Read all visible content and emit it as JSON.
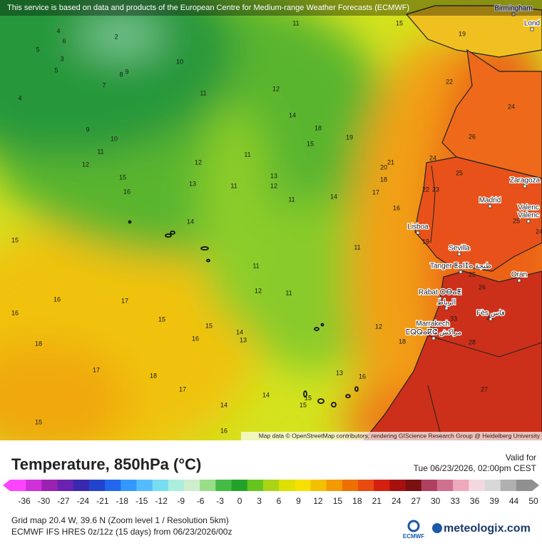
{
  "header": {
    "notice": "This service is based on data and products of the European Centre for Medium-range Weather Forecasts (ECMWF)"
  },
  "map": {
    "cities": [
      "Birmingham",
      "Lond",
      "Zaragoza",
      "Madrid",
      "Valenc",
      "Valenc",
      "Lisboa",
      "Sevilla",
      "Tanger ⵟⴰⵏⵊⴰ طنجة",
      "Oran",
      "Rabat ⵔⴱⴰⵟ",
      "الرباط",
      "Fès فاس",
      "Marrakech",
      "ⵎⵕⵕⴰⴽⵛ مراكش"
    ],
    "contour_labels": [
      4,
      6,
      2,
      5,
      3,
      5,
      8,
      9,
      4,
      7,
      10,
      11,
      15,
      19,
      11,
      12,
      9,
      10,
      11,
      12,
      14,
      18,
      19,
      15,
      11,
      12,
      13,
      12,
      11,
      13,
      15,
      16,
      21,
      20,
      18,
      17,
      14,
      11,
      16,
      14,
      15,
      11,
      11,
      12,
      11,
      17,
      16,
      16,
      15,
      15,
      14,
      13,
      16,
      12,
      18,
      18,
      17,
      18,
      13,
      16,
      17,
      14,
      15,
      14,
      15,
      15,
      16,
      22,
      24,
      26,
      24,
      25,
      22,
      23,
      25,
      24,
      19,
      25,
      26,
      28,
      33,
      29,
      28,
      27
    ],
    "credit": "Map data © OpenStreetMap contributors, rendering GIScience Research Group @ Heidelberg University"
  },
  "legend": {
    "title": "Temperature, 850hPa (°C)",
    "valid_label": "Valid for",
    "valid_time": "Tue 06/23/2026, 02:00pm CEST",
    "ticks": [
      -36,
      -30,
      -27,
      -24,
      -21,
      -18,
      -15,
      -12,
      -9,
      -6,
      -3,
      0,
      3,
      6,
      9,
      12,
      15,
      18,
      21,
      24,
      27,
      30,
      33,
      36,
      39,
      44,
      50
    ],
    "colors": [
      "#ff44ff",
      "#d030d8",
      "#9a22b0",
      "#6a22b0",
      "#3a28b0",
      "#2244cc",
      "#2266ee",
      "#3399ff",
      "#55bbff",
      "#77ddf0",
      "#aaeedd",
      "#cfeecc",
      "#99dd88",
      "#44bb44",
      "#22a22a",
      "#66c41e",
      "#aad414",
      "#dde000",
      "#f5e000",
      "#f4c000",
      "#f29a00",
      "#ee7000",
      "#e84a10",
      "#d42010",
      "#a81010",
      "#7a1010",
      "#b04060",
      "#d07090",
      "#eeaabb",
      "#f4d8e0",
      "#d8d8d8",
      "#b0b0b0",
      "#909090"
    ]
  },
  "footer": {
    "grid": "Grid map 20.4 W, 39.6 N (Zoom level 1 / Resolution 5km)",
    "model": "ECMWF IFS HRES 0z/12z (15 days) from  06/23/2026/00z",
    "ecmwf": "ECMWF",
    "brand": "meteologix.com"
  }
}
